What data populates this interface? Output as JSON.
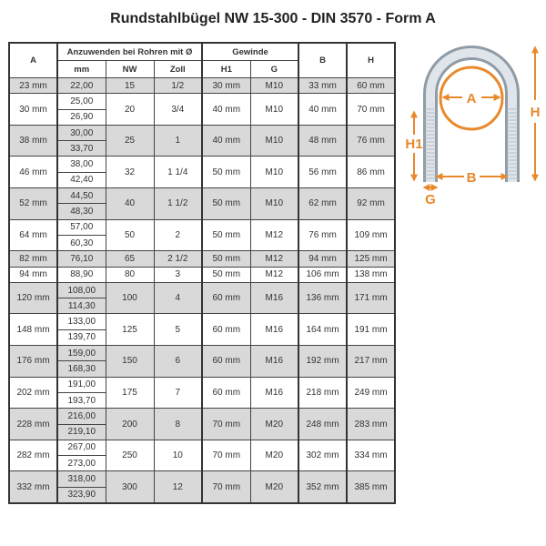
{
  "title": "Rundstahlbügel NW 15-300 - DIN 3570 - Form A",
  "headers": {
    "a": "A",
    "group_pipe": "Anzuwenden bei Rohren mit Ø",
    "group_thread": "Gewinde",
    "b": "B",
    "h": "H",
    "mm": "mm",
    "nw": "NW",
    "zoll": "Zoll",
    "h1": "H1",
    "g": "G"
  },
  "rows": [
    {
      "a": "23 mm",
      "mm": [
        "22,00"
      ],
      "nw": "15",
      "zoll": "1/2",
      "h1": "30 mm",
      "g": "M10",
      "b": "33 mm",
      "h": "60 mm"
    },
    {
      "a": "30 mm",
      "mm": [
        "25,00",
        "26,90"
      ],
      "nw": "20",
      "zoll": "3/4",
      "h1": "40 mm",
      "g": "M10",
      "b": "40 mm",
      "h": "70 mm"
    },
    {
      "a": "38 mm",
      "mm": [
        "30,00",
        "33,70"
      ],
      "nw": "25",
      "zoll": "1",
      "h1": "40 mm",
      "g": "M10",
      "b": "48 mm",
      "h": "76 mm"
    },
    {
      "a": "46 mm",
      "mm": [
        "38,00",
        "42,40"
      ],
      "nw": "32",
      "zoll": "1 1/4",
      "h1": "50 mm",
      "g": "M10",
      "b": "56 mm",
      "h": "86 mm"
    },
    {
      "a": "52 mm",
      "mm": [
        "44,50",
        "48,30"
      ],
      "nw": "40",
      "zoll": "1 1/2",
      "h1": "50 mm",
      "g": "M10",
      "b": "62 mm",
      "h": "92 mm"
    },
    {
      "a": "64 mm",
      "mm": [
        "57,00",
        "60,30"
      ],
      "nw": "50",
      "zoll": "2",
      "h1": "50 mm",
      "g": "M12",
      "b": "76 mm",
      "h": "109 mm"
    },
    {
      "a": "82 mm",
      "mm": [
        "76,10"
      ],
      "nw": "65",
      "zoll": "2 1/2",
      "h1": "50 mm",
      "g": "M12",
      "b": "94 mm",
      "h": "125 mm"
    },
    {
      "a": "94 mm",
      "mm": [
        "88,90"
      ],
      "nw": "80",
      "zoll": "3",
      "h1": "50 mm",
      "g": "M12",
      "b": "106 mm",
      "h": "138 mm"
    },
    {
      "a": "120 mm",
      "mm": [
        "108,00",
        "114,30"
      ],
      "nw": "100",
      "zoll": "4",
      "h1": "60 mm",
      "g": "M16",
      "b": "136 mm",
      "h": "171 mm"
    },
    {
      "a": "148 mm",
      "mm": [
        "133,00",
        "139,70"
      ],
      "nw": "125",
      "zoll": "5",
      "h1": "60 mm",
      "g": "M16",
      "b": "164 mm",
      "h": "191 mm"
    },
    {
      "a": "176 mm",
      "mm": [
        "159,00",
        "168,30"
      ],
      "nw": "150",
      "zoll": "6",
      "h1": "60 mm",
      "g": "M16",
      "b": "192 mm",
      "h": "217 mm"
    },
    {
      "a": "202 mm",
      "mm": [
        "191,00",
        "193,70"
      ],
      "nw": "175",
      "zoll": "7",
      "h1": "60 mm",
      "g": "M16",
      "b": "218 mm",
      "h": "249 mm"
    },
    {
      "a": "228 mm",
      "mm": [
        "216,00",
        "219,10"
      ],
      "nw": "200",
      "zoll": "8",
      "h1": "70 mm",
      "g": "M20",
      "b": "248 mm",
      "h": "283 mm"
    },
    {
      "a": "282 mm",
      "mm": [
        "267,00",
        "273,00"
      ],
      "nw": "250",
      "zoll": "10",
      "h1": "70 mm",
      "g": "M20",
      "b": "302 mm",
      "h": "334 mm"
    },
    {
      "a": "332 mm",
      "mm": [
        "318,00",
        "323,90"
      ],
      "nw": "300",
      "zoll": "12",
      "h1": "70 mm",
      "g": "M20",
      "b": "352 mm",
      "h": "385 mm"
    }
  ],
  "diagram": {
    "labels": {
      "a": "A",
      "b": "B",
      "h": "H",
      "h1": "H1",
      "g": "G"
    },
    "accent_color": "#e8892b",
    "steel_color": "#c9d3dc"
  },
  "colors": {
    "shaded_row": "#d9d9d9",
    "border": "#333333"
  }
}
